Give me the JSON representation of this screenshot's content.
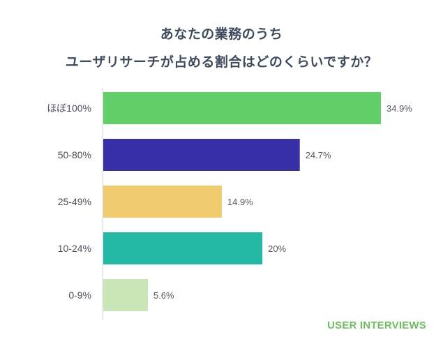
{
  "chart_data": {
    "type": "bar",
    "orientation": "horizontal",
    "title_lines": [
      "あなたの業務のうち",
      "ユーザリサーチが占める割合はどのくらいですか？"
    ],
    "categories": [
      "ほぼ100%",
      "50-80%",
      "25-49%",
      "10-24%",
      "0-9%"
    ],
    "values": [
      34.9,
      24.7,
      14.9,
      20,
      5.6
    ],
    "value_labels": [
      "34.9%",
      "24.7%",
      "14.9%",
      "20%",
      "5.6%"
    ],
    "colors": [
      "#62cf69",
      "#3730a8",
      "#f0cb6d",
      "#22b8a3",
      "#c8e6b6"
    ],
    "xlim": [
      0,
      40
    ],
    "grid": false,
    "legend": "none"
  },
  "brand": "USER INTERVIEWS"
}
